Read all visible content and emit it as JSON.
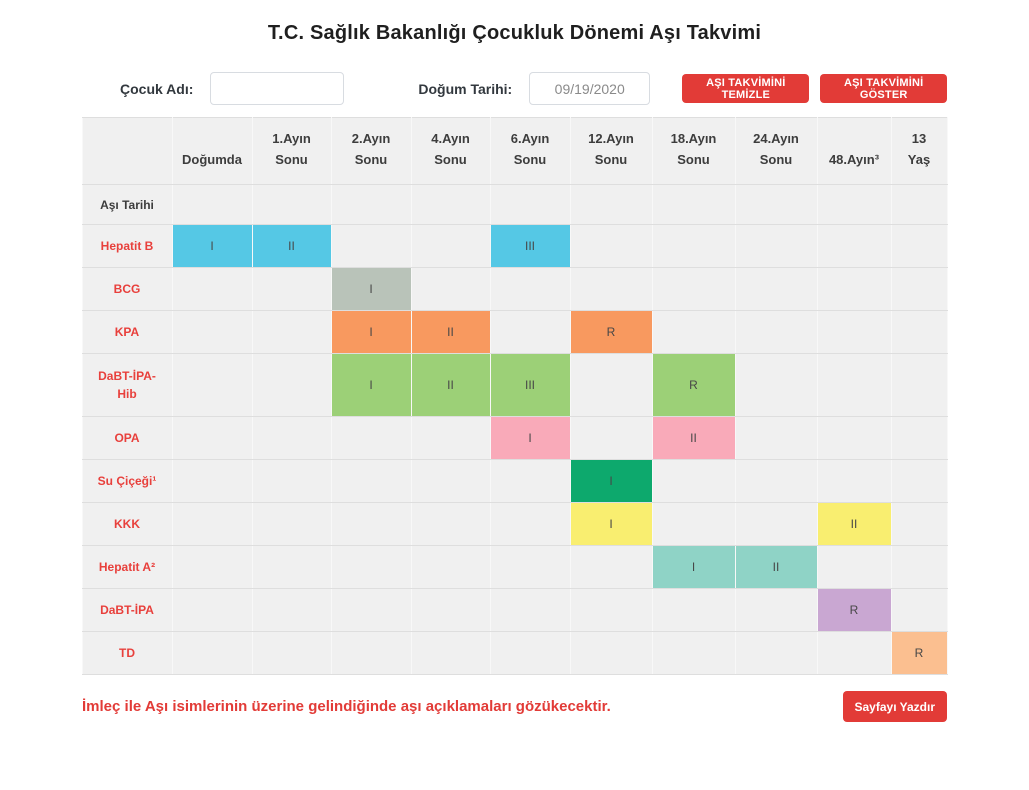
{
  "title": "T.C. Sağlık Bakanlığı Çocukluk Dönemi Aşı Takvimi",
  "form": {
    "child_name_label": "Çocuk Adı:",
    "child_name_value": "",
    "birth_date_label": "Doğum Tarihi:",
    "birth_date_value": "09/19/2020",
    "clear_button_label": "AŞI TAKVİMİNİ TEMİZLE",
    "show_button_label": "AŞI TAKVİMİNİ GÖSTER"
  },
  "colors": {
    "accent_red": "#e23b37",
    "row_label_red": "#e8403c",
    "table_background": "#f0f0f0"
  },
  "table": {
    "column_headers": [
      "",
      "Doğumda",
      "1.Ayın\nSonu",
      "2.Ayın\nSonu",
      "4.Ayın\nSonu",
      "6.Ayın\nSonu",
      "12.Ayın\nSonu",
      "18.Ayın\nSonu",
      "24.Ayın\nSonu",
      "48.Ayın³",
      "13\nYaş"
    ],
    "rows": [
      {
        "label": "Aşı Tarihi",
        "kind": "date",
        "color": "",
        "cells": [
          "",
          "",
          "",
          "",
          "",
          "",
          "",
          "",
          "",
          ""
        ]
      },
      {
        "label": "Hepatit B",
        "kind": "vaccine",
        "color": "#55c8e5",
        "cells": [
          "I",
          "II",
          "",
          "",
          "III",
          "",
          "",
          "",
          "",
          ""
        ]
      },
      {
        "label": "BCG",
        "kind": "vaccine",
        "color": "#b9c3b9",
        "cells": [
          "",
          "",
          "I",
          "",
          "",
          "",
          "",
          "",
          "",
          ""
        ]
      },
      {
        "label": "KPA",
        "kind": "vaccine",
        "color": "#f8995f",
        "cells": [
          "",
          "",
          "I",
          "II",
          "",
          "R",
          "",
          "",
          "",
          ""
        ]
      },
      {
        "label": "DaBT-İPA-Hib",
        "kind": "vaccine",
        "color": "#9cd077",
        "cells": [
          "",
          "",
          "I",
          "II",
          "III",
          "",
          "R",
          "",
          "",
          ""
        ]
      },
      {
        "label": "OPA",
        "kind": "vaccine",
        "color": "#f9aab9",
        "cells": [
          "",
          "",
          "",
          "",
          "I",
          "",
          "II",
          "",
          "",
          ""
        ]
      },
      {
        "label": "Su Çiçeği¹",
        "kind": "vaccine",
        "color": "#0da96d",
        "cells": [
          "",
          "",
          "",
          "",
          "",
          "I",
          "",
          "",
          "",
          ""
        ]
      },
      {
        "label": "KKK",
        "kind": "vaccine",
        "color": "#f9ee70",
        "cells": [
          "",
          "",
          "",
          "",
          "",
          "I",
          "",
          "",
          "II",
          ""
        ]
      },
      {
        "label": "Hepatit A²",
        "kind": "vaccine",
        "color": "#8fd3c6",
        "cells": [
          "",
          "",
          "",
          "",
          "",
          "",
          "I",
          "II",
          "",
          ""
        ]
      },
      {
        "label": "DaBT-İPA",
        "kind": "vaccine",
        "color": "#c9a7d2",
        "cells": [
          "",
          "",
          "",
          "",
          "",
          "",
          "",
          "",
          "R",
          ""
        ]
      },
      {
        "label": "TD",
        "kind": "vaccine",
        "color": "#fbbf90",
        "cells": [
          "",
          "",
          "",
          "",
          "",
          "",
          "",
          "",
          "",
          "R"
        ]
      }
    ]
  },
  "footer": {
    "note": "İmleç ile Aşı isimlerinin üzerine gelindiğinde aşı açıklamaları gözükecektir.",
    "print_button_label": "Sayfayı Yazdır"
  }
}
